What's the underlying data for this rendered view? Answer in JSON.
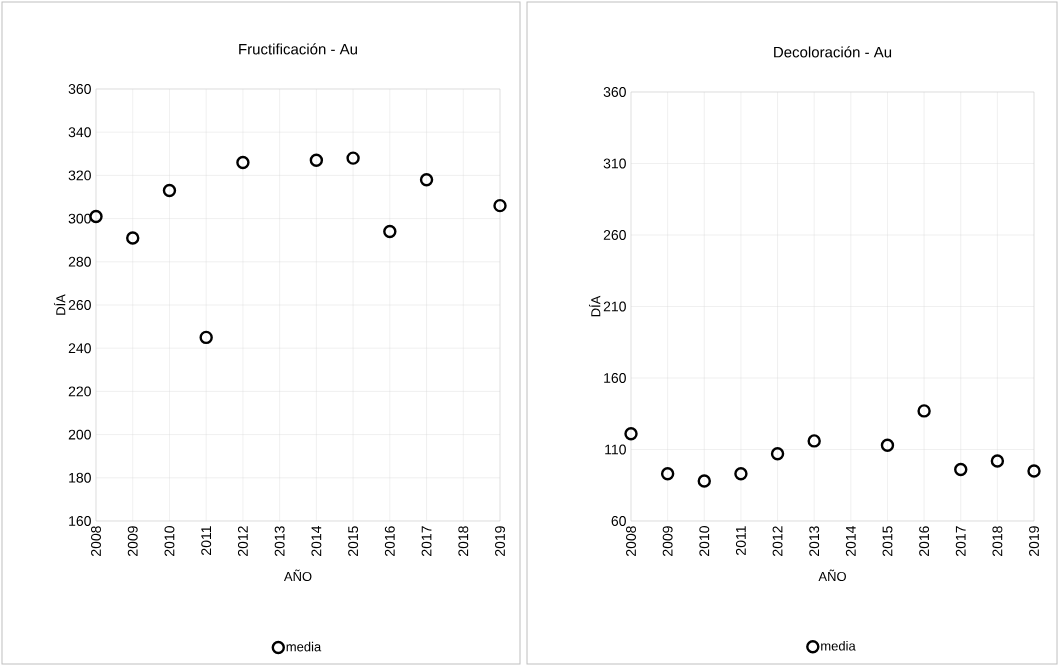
{
  "chart_data": [
    {
      "type": "scatter",
      "title": "Fructificación - Au",
      "xlabel": "AÑO",
      "ylabel": "DÍA",
      "categories": [
        "2008",
        "2009",
        "2010",
        "2011",
        "2012",
        "2013",
        "2014",
        "2015",
        "2016",
        "2017",
        "2018",
        "2019"
      ],
      "series": [
        {
          "name": "media",
          "color": "#000000",
          "values": [
            301,
            291,
            313,
            245,
            326,
            null,
            327,
            328,
            294,
            318,
            null,
            306
          ]
        }
      ],
      "ylim": [
        160,
        360
      ],
      "yticks": [
        160,
        180,
        200,
        220,
        240,
        260,
        280,
        300,
        320,
        340,
        360
      ],
      "grid": true,
      "legend": "bottom",
      "marker": "circle"
    },
    {
      "type": "scatter",
      "title": "Decoloración - Au",
      "xlabel": "AÑO",
      "ylabel": "DÍA",
      "categories": [
        "2008",
        "2009",
        "2010",
        "2011",
        "2012",
        "2013",
        "2014",
        "2015",
        "2016",
        "2017",
        "2018",
        "2019"
      ],
      "series": [
        {
          "name": "media",
          "color": "#000000",
          "values": [
            121,
            93,
            88,
            93,
            107,
            116,
            null,
            113,
            137,
            96,
            102,
            95
          ]
        }
      ],
      "ylim": [
        60,
        360
      ],
      "yticks": [
        60,
        110,
        160,
        210,
        260,
        310,
        360
      ],
      "grid": true,
      "legend": "bottom",
      "marker": "circle"
    }
  ]
}
